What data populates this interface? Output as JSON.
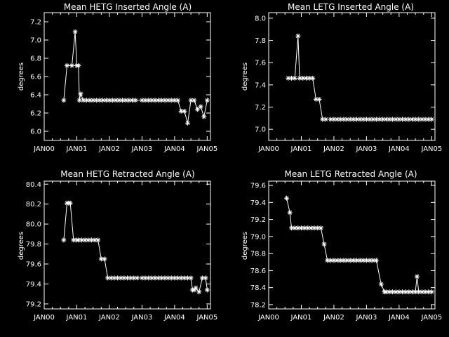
{
  "chart_data": [
    {
      "type": "line",
      "title": "Mean HETG Inserted Angle (A)",
      "xlabel": "",
      "ylabel": "degrees",
      "x_ticks": [
        "JAN00",
        "JAN01",
        "JAN02",
        "JAN03",
        "JAN04",
        "JAN05"
      ],
      "xlim": [
        2000.0,
        2005.1
      ],
      "y_ticks": [
        "6.0",
        "6.2",
        "6.4",
        "6.6",
        "6.8",
        "7.0",
        "7.2"
      ],
      "ylim": [
        5.9,
        7.3
      ],
      "marker": "asterisk",
      "series": [
        {
          "x": [
            2000.6,
            2000.7,
            2000.85,
            2000.95,
            2001.0,
            2001.05,
            2001.08,
            2001.12,
            2001.2,
            2001.3,
            2001.4,
            2001.5,
            2001.6,
            2001.7,
            2001.8,
            2001.9,
            2002.0,
            2002.1,
            2002.2,
            2002.3,
            2002.4,
            2002.5,
            2002.6,
            2002.7,
            2002.8,
            2003.0,
            2003.1,
            2003.2,
            2003.3,
            2003.4,
            2003.5,
            2003.6,
            2003.7,
            2003.8,
            2003.9,
            2004.0,
            2004.1,
            2004.2,
            2004.3,
            2004.4,
            2004.5,
            2004.6,
            2004.7,
            2004.8,
            2004.9,
            2005.0
          ],
          "y": [
            6.34,
            6.72,
            6.72,
            7.09,
            6.72,
            6.72,
            6.34,
            6.41,
            6.34,
            6.34,
            6.34,
            6.34,
            6.34,
            6.34,
            6.34,
            6.34,
            6.34,
            6.34,
            6.34,
            6.34,
            6.34,
            6.34,
            6.34,
            6.34,
            6.34,
            6.34,
            6.34,
            6.34,
            6.34,
            6.34,
            6.34,
            6.34,
            6.34,
            6.34,
            6.34,
            6.34,
            6.34,
            6.22,
            6.22,
            6.09,
            6.34,
            6.34,
            6.24,
            6.27,
            6.16,
            6.34
          ]
        }
      ]
    },
    {
      "type": "line",
      "title": "Mean LETG Inserted Angle (A)",
      "xlabel": "",
      "ylabel": "degrees",
      "x_ticks": [
        "JAN00",
        "JAN01",
        "JAN02",
        "JAN03",
        "JAN04",
        "JAN05"
      ],
      "xlim": [
        2000.0,
        2005.1
      ],
      "y_ticks": [
        "7.0",
        "7.2",
        "7.4",
        "7.6",
        "7.8",
        "8.0"
      ],
      "ylim": [
        6.9,
        8.05
      ],
      "marker": "asterisk",
      "series": [
        {
          "x": [
            2000.6,
            2000.7,
            2000.8,
            2000.9,
            2000.95,
            2001.05,
            2001.15,
            2001.25,
            2001.35,
            2001.45,
            2001.55,
            2001.65,
            2001.75,
            2001.9,
            2002.0,
            2002.1,
            2002.2,
            2002.3,
            2002.4,
            2002.5,
            2002.6,
            2002.7,
            2002.8,
            2002.9,
            2003.0,
            2003.1,
            2003.2,
            2003.3,
            2003.4,
            2003.5,
            2003.6,
            2003.7,
            2003.8,
            2003.9,
            2004.0,
            2004.1,
            2004.2,
            2004.3,
            2004.4,
            2004.5,
            2004.6,
            2004.7,
            2004.8,
            2004.9,
            2005.0
          ],
          "y": [
            7.46,
            7.46,
            7.46,
            7.84,
            7.46,
            7.46,
            7.46,
            7.46,
            7.46,
            7.27,
            7.27,
            7.09,
            7.09,
            7.09,
            7.09,
            7.09,
            7.09,
            7.09,
            7.09,
            7.09,
            7.09,
            7.09,
            7.09,
            7.09,
            7.09,
            7.09,
            7.09,
            7.09,
            7.09,
            7.09,
            7.09,
            7.09,
            7.09,
            7.09,
            7.09,
            7.09,
            7.09,
            7.09,
            7.09,
            7.09,
            7.09,
            7.09,
            7.09,
            7.09,
            7.09
          ]
        }
      ]
    },
    {
      "type": "line",
      "title": "Mean HETG Retracted Angle (A)",
      "xlabel": "",
      "ylabel": "degrees",
      "x_ticks": [
        "JAN00",
        "JAN01",
        "JAN02",
        "JAN03",
        "JAN04",
        "JAN05"
      ],
      "xlim": [
        2000.0,
        2005.1
      ],
      "y_ticks": [
        "79.2",
        "79.4",
        "79.6",
        "79.8",
        "80.0",
        "80.2",
        "80.4"
      ],
      "ylim": [
        79.15,
        80.43
      ],
      "marker": "asterisk",
      "series": [
        {
          "x": [
            2000.6,
            2000.7,
            2000.75,
            2000.8,
            2000.9,
            2001.0,
            2001.05,
            2001.15,
            2001.25,
            2001.35,
            2001.45,
            2001.55,
            2001.65,
            2001.75,
            2001.85,
            2001.95,
            2002.05,
            2002.15,
            2002.25,
            2002.35,
            2002.45,
            2002.55,
            2002.65,
            2002.75,
            2002.85,
            2003.0,
            2003.1,
            2003.2,
            2003.3,
            2003.4,
            2003.5,
            2003.6,
            2003.7,
            2003.8,
            2003.9,
            2004.0,
            2004.1,
            2004.2,
            2004.3,
            2004.4,
            2004.5,
            2004.55,
            2004.6,
            2004.65,
            2004.75,
            2004.85,
            2004.95,
            2005.0
          ],
          "y": [
            79.84,
            80.21,
            80.21,
            80.21,
            79.84,
            79.84,
            79.84,
            79.84,
            79.84,
            79.84,
            79.84,
            79.84,
            79.84,
            79.65,
            79.65,
            79.46,
            79.46,
            79.46,
            79.46,
            79.46,
            79.46,
            79.46,
            79.46,
            79.46,
            79.46,
            79.46,
            79.46,
            79.46,
            79.46,
            79.46,
            79.46,
            79.46,
            79.46,
            79.46,
            79.46,
            79.46,
            79.46,
            79.46,
            79.46,
            79.46,
            79.46,
            79.34,
            79.34,
            79.36,
            79.32,
            79.46,
            79.46,
            79.34
          ]
        }
      ]
    },
    {
      "type": "line",
      "title": "Mean LETG Retracted Angle (A)",
      "xlabel": "",
      "ylabel": "degrees",
      "x_ticks": [
        "JAN00",
        "JAN01",
        "JAN02",
        "JAN03",
        "JAN04",
        "JAN05"
      ],
      "xlim": [
        2000.0,
        2005.1
      ],
      "y_ticks": [
        "78.2",
        "78.4",
        "78.6",
        "78.8",
        "79.0",
        "79.2",
        "79.4",
        "79.6"
      ],
      "ylim": [
        78.15,
        79.65
      ],
      "marker": "asterisk",
      "series": [
        {
          "x": [
            2000.55,
            2000.65,
            2000.7,
            2000.8,
            2000.9,
            2001.0,
            2001.1,
            2001.2,
            2001.3,
            2001.4,
            2001.5,
            2001.6,
            2001.7,
            2001.8,
            2001.9,
            2002.0,
            2002.1,
            2002.2,
            2002.3,
            2002.4,
            2002.5,
            2002.6,
            2002.7,
            2002.8,
            2002.9,
            2003.0,
            2003.1,
            2003.2,
            2003.3,
            2003.45,
            2003.55,
            2003.6,
            2003.7,
            2003.8,
            2003.9,
            2004.0,
            2004.1,
            2004.2,
            2004.3,
            2004.4,
            2004.5,
            2004.55,
            2004.6,
            2004.7,
            2004.8,
            2004.9,
            2005.0
          ],
          "y": [
            79.45,
            79.28,
            79.1,
            79.1,
            79.1,
            79.1,
            79.1,
            79.1,
            79.1,
            79.1,
            79.1,
            79.1,
            78.91,
            78.72,
            78.72,
            78.72,
            78.72,
            78.72,
            78.72,
            78.72,
            78.72,
            78.72,
            78.72,
            78.72,
            78.72,
            78.72,
            78.72,
            78.72,
            78.72,
            78.44,
            78.35,
            78.35,
            78.35,
            78.35,
            78.35,
            78.35,
            78.35,
            78.35,
            78.35,
            78.35,
            78.35,
            78.53,
            78.35,
            78.35,
            78.35,
            78.35,
            78.35
          ]
        }
      ]
    }
  ]
}
